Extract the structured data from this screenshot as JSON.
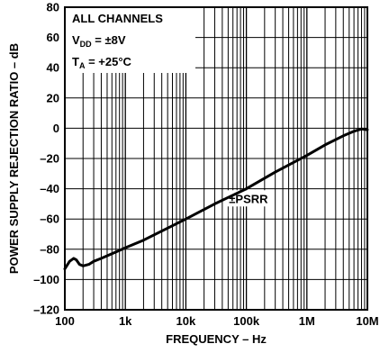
{
  "chart_data": {
    "type": "line",
    "x_scale": "log",
    "xlim": [
      100,
      10000000
    ],
    "ylim": [
      -120,
      80
    ],
    "grid": true,
    "xlabel": "FREQUENCY – Hz",
    "ylabel": "POWER SUPPLY REJECTION RATIO – dB",
    "x_ticks": [
      100,
      1000,
      10000,
      100000,
      1000000,
      10000000
    ],
    "x_tick_labels": [
      "100",
      "1k",
      "10k",
      "100k",
      "1M",
      "10M"
    ],
    "y_ticks": [
      80,
      60,
      40,
      20,
      0,
      -20,
      -40,
      -60,
      -80,
      -100,
      -120
    ],
    "y_tick_labels": [
      "80",
      "60",
      "40",
      "20",
      "0",
      "–20",
      "–40",
      "–60",
      "–80",
      "–100",
      "–120"
    ],
    "annotations": {
      "conditions": [
        "ALL CHANNELS",
        "V",
        "DD",
        " = ±8V",
        "T",
        "A",
        " = +25°C"
      ],
      "curve_label": "±PSRR"
    },
    "series": [
      {
        "name": "±PSRR",
        "x": [
          100,
          120,
          140,
          155,
          175,
          200,
          250,
          300,
          400,
          600,
          1000,
          2000,
          5000,
          10000,
          30000,
          100000,
          300000,
          1000000,
          2000000,
          4000000,
          6000000,
          8000000,
          10000000
        ],
        "y": [
          -93,
          -88,
          -86,
          -87,
          -90,
          -91,
          -90,
          -88,
          -86,
          -83,
          -79,
          -74,
          -66,
          -60,
          -50,
          -40,
          -29,
          -18,
          -11,
          -5,
          -2,
          -0.5,
          -1
        ]
      }
    ]
  }
}
